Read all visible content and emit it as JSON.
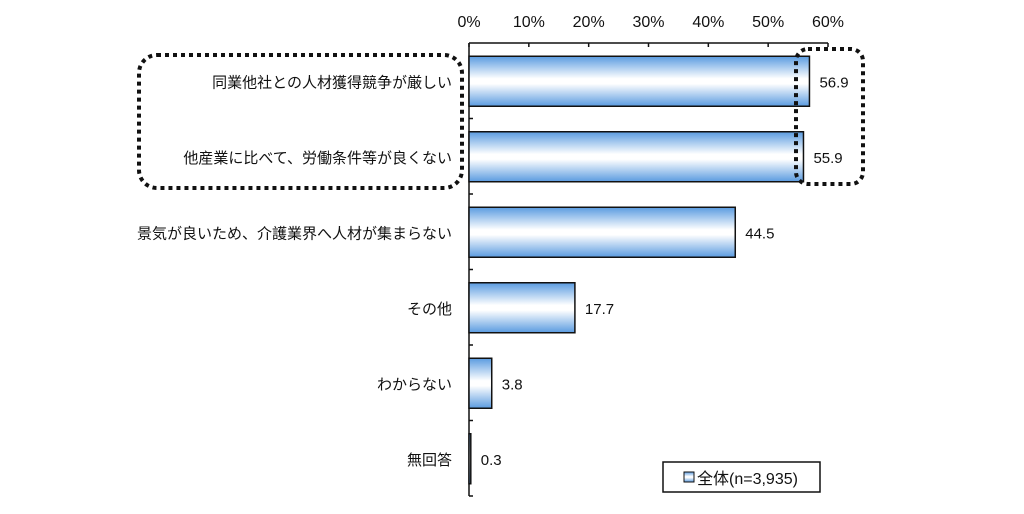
{
  "chart_data": {
    "type": "bar",
    "orientation": "horizontal",
    "categories": [
      "同業他社との人材獲得競争が厳しい",
      "他産業に比べて、労働条件等が良くない",
      "景気が良いため、介護業界へ人材が集まらない",
      "その他",
      "わからない",
      "無回答"
    ],
    "series": [
      {
        "name": "全体(n=3,935)",
        "values": [
          56.9,
          55.9,
          44.5,
          17.7,
          3.8,
          0.3
        ]
      }
    ],
    "value_labels": [
      "56.9",
      "55.9",
      "44.5",
      "17.7",
      "3.8",
      "0.3"
    ],
    "xlim": [
      0,
      60
    ],
    "x_ticks": [
      0,
      10,
      20,
      30,
      40,
      50,
      60
    ],
    "x_tick_labels": [
      "0%",
      "10%",
      "20%",
      "30%",
      "40%",
      "50%",
      "60%"
    ],
    "xaxis_position": "top",
    "legend": {
      "label": "全体(n=3,935)",
      "placement": "bottom-right"
    },
    "colors": {
      "bar_edge": "#5a9be0",
      "bar_center": "#ffffff",
      "outline": "#111111"
    }
  }
}
